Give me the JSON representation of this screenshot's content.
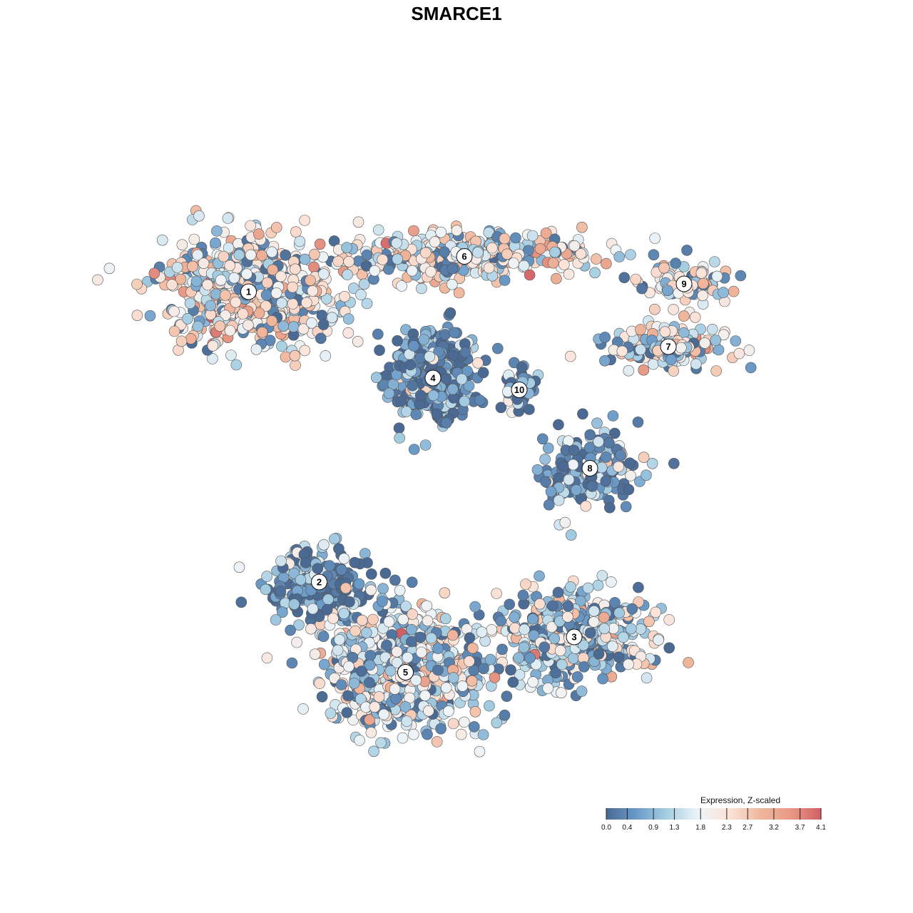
{
  "chart_data": {
    "type": "scatter",
    "title": "SMARCE1",
    "xlabel": "",
    "ylabel": "",
    "grid": false,
    "colorbar": {
      "title": "Expression, Z-scaled",
      "placement": "bottom-right",
      "ticks": [
        "0.0",
        "0.4",
        "0.9",
        "1.3",
        "1.8",
        "2.3",
        "2.7",
        "3.2",
        "3.7",
        "4.1"
      ],
      "min": 0.0,
      "max": 4.1,
      "colors": [
        "#4a6a94",
        "#6b9bc9",
        "#a8cfe3",
        "#eef4f8",
        "#fbe3d8",
        "#f0b89e",
        "#e89a86",
        "#d35f66"
      ]
    },
    "clusters": [
      {
        "label": "1",
        "x": -5.3,
        "y": 4.2,
        "spread": [
          2.0,
          1.3
        ],
        "mean_expr": 2.0,
        "n": 620
      },
      {
        "label": "6",
        "x": 0.2,
        "y": 5.1,
        "spread": [
          2.8,
          0.6
        ],
        "mean_expr": 1.9,
        "n": 420
      },
      {
        "label": "9",
        "x": 5.8,
        "y": 4.4,
        "spread": [
          0.9,
          0.6
        ],
        "mean_expr": 1.8,
        "n": 90
      },
      {
        "label": "7",
        "x": 5.4,
        "y": 2.8,
        "spread": [
          1.4,
          0.5
        ],
        "mean_expr": 1.9,
        "n": 170
      },
      {
        "label": "4",
        "x": -0.6,
        "y": 2.0,
        "spread": [
          1.0,
          1.0
        ],
        "mean_expr": 0.5,
        "n": 380
      },
      {
        "label": "10",
        "x": 1.6,
        "y": 1.7,
        "spread": [
          0.4,
          0.5
        ],
        "mean_expr": 0.6,
        "n": 50
      },
      {
        "label": "8",
        "x": 3.4,
        "y": -0.3,
        "spread": [
          1.1,
          0.9
        ],
        "mean_expr": 0.7,
        "n": 200
      },
      {
        "label": "2",
        "x": -3.5,
        "y": -3.2,
        "spread": [
          1.3,
          0.8
        ],
        "mean_expr": 0.6,
        "n": 240
      },
      {
        "label": "3",
        "x": 3.0,
        "y": -4.6,
        "spread": [
          1.6,
          1.0
        ],
        "mean_expr": 1.4,
        "n": 540
      },
      {
        "label": "5",
        "x": -1.3,
        "y": -5.5,
        "spread": [
          1.8,
          1.4
        ],
        "mean_expr": 1.6,
        "n": 760
      }
    ],
    "xlim": [
      -9,
      9
    ],
    "ylim": [
      -9,
      9
    ]
  }
}
